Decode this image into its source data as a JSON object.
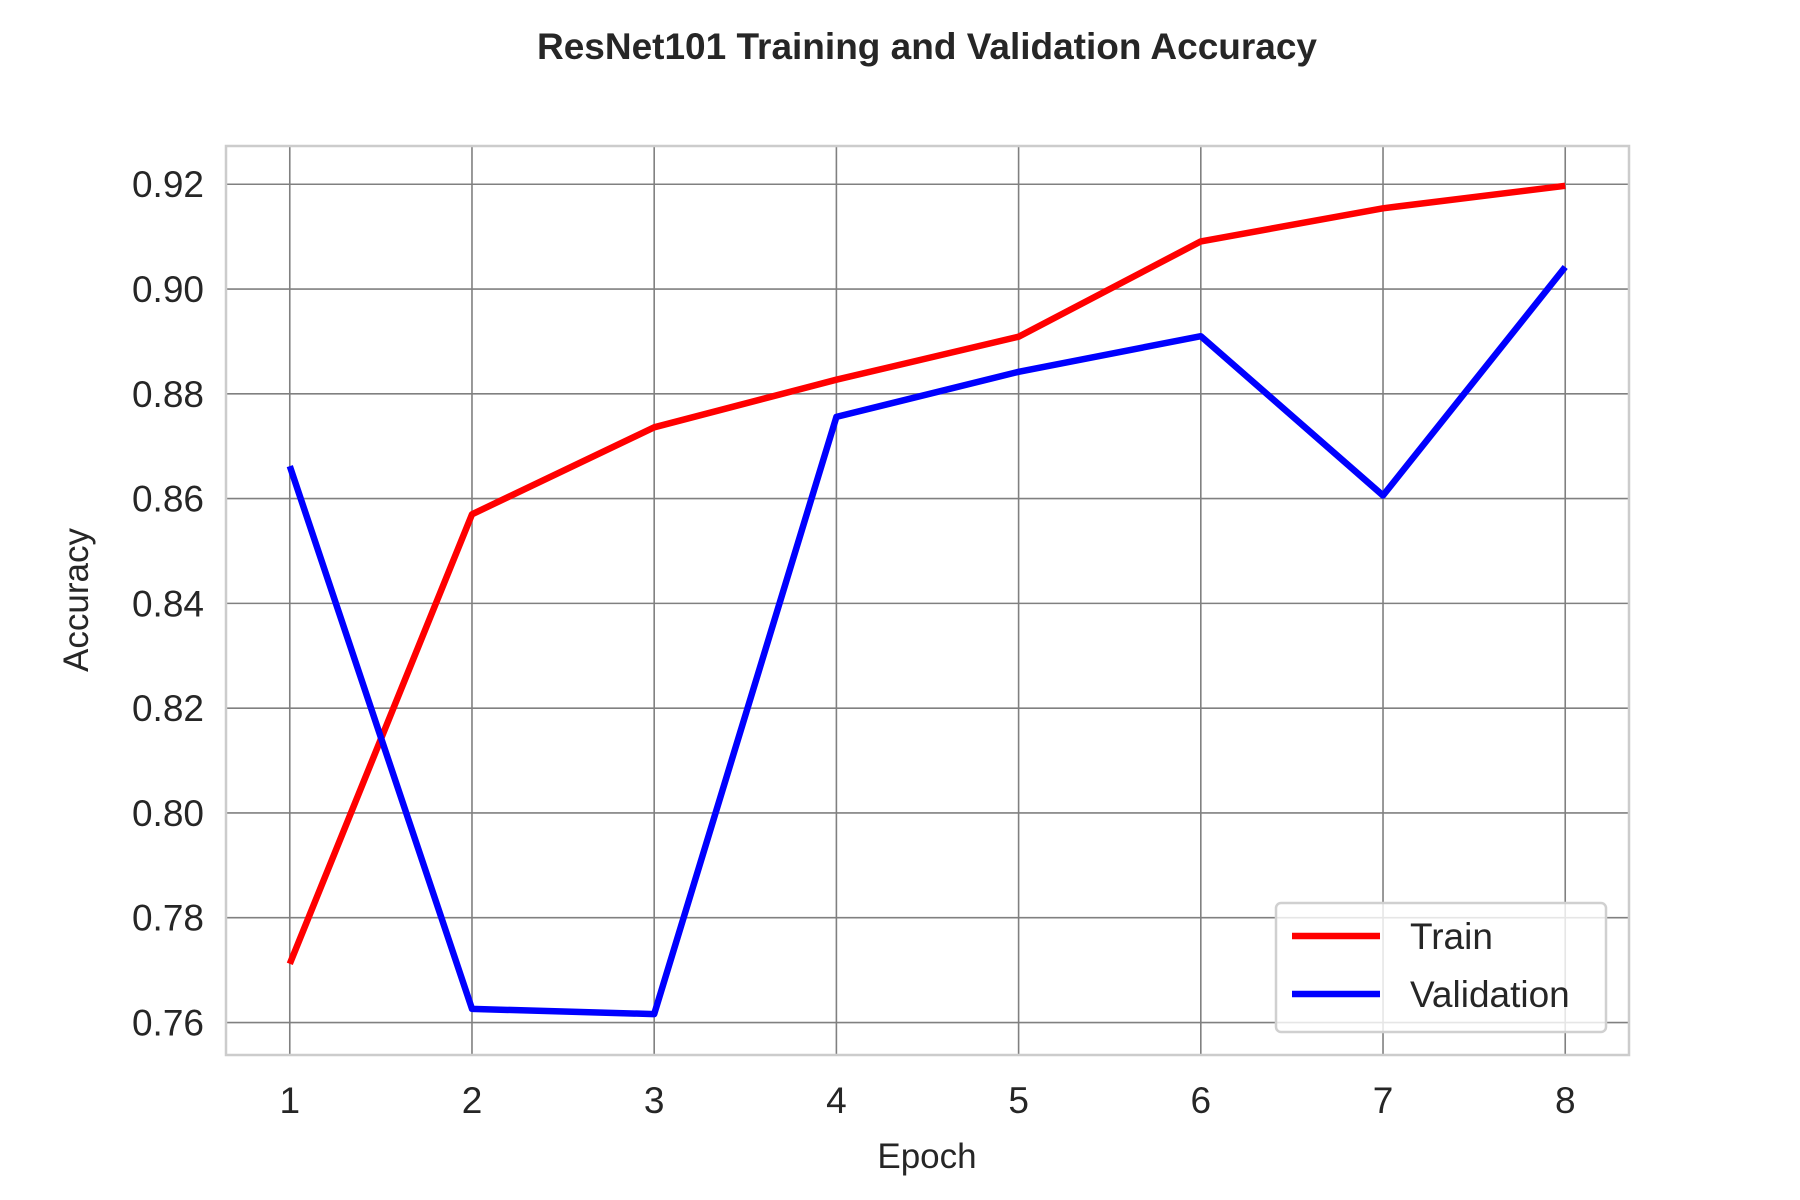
{
  "chart_data": {
    "type": "line",
    "title": "ResNet101 Training and Validation Accuracy",
    "xlabel": "Epoch",
    "ylabel": "Accuracy",
    "x": [
      1,
      2,
      3,
      4,
      5,
      6,
      7,
      8
    ],
    "xticks": [
      "1",
      "2",
      "3",
      "4",
      "5",
      "6",
      "7",
      "8"
    ],
    "yticks": [
      "0.76",
      "0.78",
      "0.80",
      "0.82",
      "0.84",
      "0.86",
      "0.88",
      "0.90",
      "0.92"
    ],
    "ytick_values": [
      0.76,
      0.78,
      0.8,
      0.82,
      0.84,
      0.86,
      0.88,
      0.9,
      0.92
    ],
    "xlim": [
      0.65,
      8.35
    ],
    "ylim": [
      0.7538,
      0.9273
    ],
    "grid": true,
    "legend_position": "lower-right",
    "series": [
      {
        "name": "Train",
        "color": "#ff0000",
        "values": [
          0.7712,
          0.857,
          0.8736,
          0.8827,
          0.8909,
          0.9091,
          0.9154,
          0.9197
        ]
      },
      {
        "name": "Validation",
        "color": "#0000ff",
        "values": [
          0.8662,
          0.7626,
          0.7616,
          0.8756,
          0.8842,
          0.891,
          0.8606,
          0.9042
        ]
      }
    ]
  }
}
